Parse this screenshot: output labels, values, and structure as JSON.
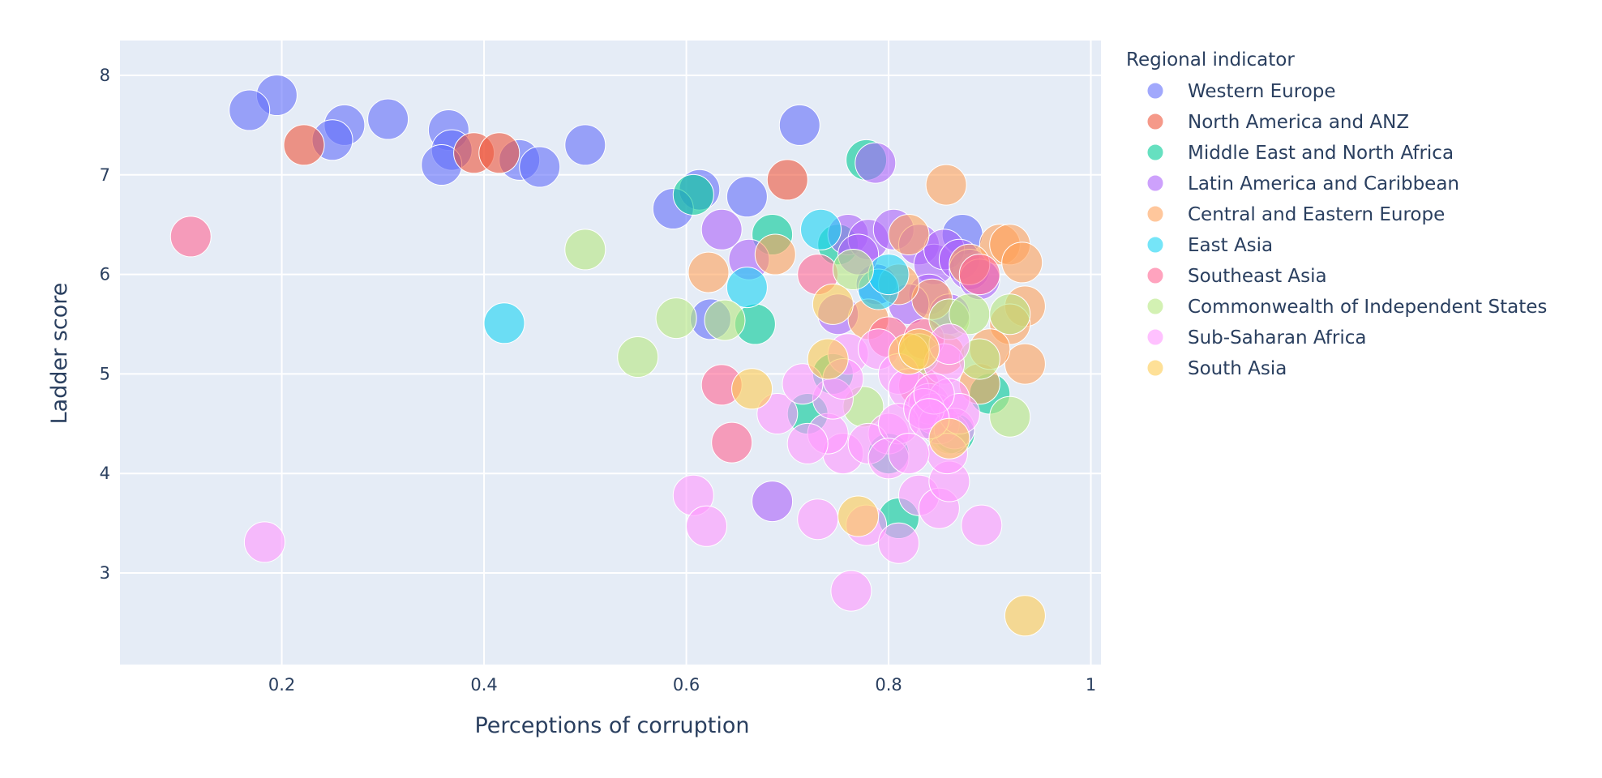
{
  "chart_data": {
    "type": "scatter",
    "title": "",
    "xlabel": "Perceptions of corruption",
    "ylabel": "Ladder score",
    "xlim": [
      0.04,
      1.01
    ],
    "ylim": [
      2.08,
      8.35
    ],
    "xticks": [
      0.2,
      0.4,
      0.6,
      0.8,
      1
    ],
    "xtick_labels": [
      "0.2",
      "0.4",
      "0.6",
      "0.8",
      "1"
    ],
    "yticks": [
      3,
      4,
      5,
      6,
      7,
      8
    ],
    "ytick_labels": [
      "3",
      "4",
      "5",
      "6",
      "7",
      "8"
    ],
    "grid": true,
    "legend": {
      "title": "Regional indicator",
      "placement": "right"
    },
    "series": [
      {
        "name": "Western Europe",
        "color": "#636efa",
        "x": [
          0.195,
          0.168,
          0.262,
          0.305,
          0.25,
          0.365,
          0.368,
          0.358,
          0.435,
          0.455,
          0.5,
          0.712,
          0.613,
          0.587,
          0.66,
          0.624,
          0.873,
          0.788
        ],
        "y": [
          7.8,
          7.65,
          7.5,
          7.56,
          7.35,
          7.45,
          7.25,
          7.1,
          7.15,
          7.08,
          7.3,
          7.5,
          6.85,
          6.66,
          6.78,
          5.55,
          6.4,
          5.9
        ]
      },
      {
        "name": "North America and ANZ",
        "color": "#ef553b",
        "x": [
          0.222,
          0.39,
          0.415,
          0.7
        ],
        "y": [
          7.3,
          7.22,
          7.22,
          6.95
        ]
      },
      {
        "name": "Middle East and North Africa",
        "color": "#00cc96",
        "x": [
          0.778,
          0.607,
          0.685,
          0.668,
          0.75,
          0.72,
          0.8,
          0.85,
          0.865,
          0.9,
          0.81,
          0.745
        ],
        "y": [
          7.15,
          6.8,
          6.4,
          5.5,
          6.3,
          4.6,
          4.2,
          4.5,
          4.4,
          4.8,
          3.55,
          5.0
        ]
      },
      {
        "name": "Latin America and Caribbean",
        "color": "#ab63fa",
        "x": [
          0.787,
          0.635,
          0.662,
          0.76,
          0.78,
          0.805,
          0.83,
          0.845,
          0.855,
          0.87,
          0.88,
          0.89,
          0.84,
          0.82,
          0.75,
          0.685,
          0.77,
          0.86
        ],
        "y": [
          7.12,
          6.45,
          6.15,
          6.4,
          6.35,
          6.45,
          6.3,
          6.1,
          6.25,
          6.15,
          6.05,
          5.95,
          5.8,
          5.7,
          5.6,
          3.72,
          6.2,
          5.6
        ]
      },
      {
        "name": "Central and Eastern Europe",
        "color": "#ffa15a",
        "x": [
          0.857,
          0.622,
          0.688,
          0.82,
          0.91,
          0.92,
          0.932,
          0.935,
          0.92,
          0.843,
          0.78,
          0.935,
          0.89,
          0.81,
          0.88,
          0.855,
          0.9
        ],
        "y": [
          6.9,
          6.02,
          6.2,
          6.4,
          6.3,
          6.3,
          6.12,
          5.68,
          5.5,
          5.75,
          5.55,
          5.1,
          4.9,
          5.9,
          6.1,
          5.2,
          5.25
        ]
      },
      {
        "name": "East Asia",
        "color": "#19d3f3",
        "x": [
          0.733,
          0.66,
          0.42,
          0.79,
          0.8
        ],
        "y": [
          6.45,
          5.87,
          5.51,
          5.85,
          6.0
        ]
      },
      {
        "name": "Southeast Asia",
        "color": "#ff6692",
        "x": [
          0.11,
          0.73,
          0.635,
          0.645,
          0.8,
          0.83,
          0.89,
          0.835
        ],
        "y": [
          6.38,
          6.0,
          4.89,
          4.31,
          5.37,
          4.88,
          6.0,
          5.35
        ]
      },
      {
        "name": "Commonwealth of Independent States",
        "color": "#b6e880",
        "x": [
          0.5,
          0.59,
          0.638,
          0.552,
          0.765,
          0.775,
          0.86,
          0.88,
          0.92,
          0.89,
          0.86,
          0.92,
          0.83
        ],
        "y": [
          6.25,
          5.56,
          5.54,
          5.17,
          6.05,
          4.67,
          5.55,
          5.6,
          4.57,
          5.15,
          4.4,
          5.6,
          5.2
        ]
      },
      {
        "name": "Sub-Saharan Africa",
        "color": "#ff97ff",
        "x": [
          0.183,
          0.607,
          0.62,
          0.73,
          0.778,
          0.81,
          0.83,
          0.85,
          0.86,
          0.892,
          0.763,
          0.755,
          0.74,
          0.76,
          0.79,
          0.81,
          0.82,
          0.84,
          0.845,
          0.85,
          0.855,
          0.86,
          0.865,
          0.87,
          0.8,
          0.72,
          0.745,
          0.755,
          0.78,
          0.81,
          0.835,
          0.845,
          0.86,
          0.858,
          0.8,
          0.69,
          0.715,
          0.84,
          0.82
        ],
        "y": [
          3.31,
          3.78,
          3.47,
          3.54,
          3.48,
          3.3,
          3.78,
          3.65,
          3.92,
          3.48,
          2.82,
          4.2,
          4.4,
          5.2,
          5.25,
          5.0,
          4.85,
          4.7,
          4.6,
          4.5,
          5.1,
          4.75,
          4.45,
          4.6,
          4.4,
          4.3,
          4.75,
          4.95,
          4.3,
          4.5,
          4.65,
          4.8,
          5.3,
          4.2,
          4.15,
          4.6,
          4.9,
          4.55,
          4.2
        ]
      },
      {
        "name": "South Asia",
        "color": "#fecb52",
        "x": [
          0.935,
          0.77,
          0.665,
          0.82,
          0.86,
          0.745,
          0.74,
          0.83
        ],
        "y": [
          2.57,
          3.57,
          4.85,
          5.2,
          4.35,
          5.7,
          5.15,
          5.25
        ]
      }
    ]
  }
}
